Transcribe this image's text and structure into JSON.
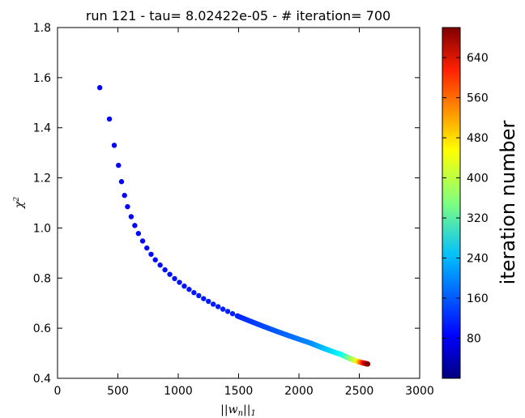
{
  "chart_data": {
    "type": "scatter",
    "title": "run 121 - tau= 8.02422e-05 - # iteration= 700",
    "xlabel": "||w_n||_1",
    "ylabel": "χ²",
    "xlim": [
      0,
      3000
    ],
    "ylim": [
      0.4,
      1.8
    ],
    "x_ticks": [
      "0",
      "500",
      "1000",
      "1500",
      "2000",
      "2500",
      "3000"
    ],
    "y_ticks": [
      "0.4",
      "0.6",
      "0.8",
      "1.0",
      "1.2",
      "1.4",
      "1.6",
      "1.8"
    ],
    "grid": false,
    "colorbar": {
      "label": "iteration number",
      "range": [
        0,
        700
      ],
      "ticks": [
        "80",
        "160",
        "240",
        "320",
        "400",
        "480",
        "560",
        "640"
      ],
      "colormap": "jet"
    },
    "points": [
      {
        "x": 350,
        "y": 1.56,
        "iter": 0
      },
      {
        "x": 430,
        "y": 1.435,
        "iter": 1
      },
      {
        "x": 470,
        "y": 1.33,
        "iter": 2
      },
      {
        "x": 505,
        "y": 1.25,
        "iter": 3
      },
      {
        "x": 530,
        "y": 1.185,
        "iter": 4
      },
      {
        "x": 555,
        "y": 1.13,
        "iter": 5
      },
      {
        "x": 580,
        "y": 1.085,
        "iter": 6
      },
      {
        "x": 610,
        "y": 1.045,
        "iter": 7
      },
      {
        "x": 640,
        "y": 1.01,
        "iter": 8
      },
      {
        "x": 670,
        "y": 0.978,
        "iter": 9
      },
      {
        "x": 705,
        "y": 0.948,
        "iter": 10
      },
      {
        "x": 740,
        "y": 0.92,
        "iter": 11
      },
      {
        "x": 775,
        "y": 0.895,
        "iter": 12
      },
      {
        "x": 810,
        "y": 0.873,
        "iter": 13
      },
      {
        "x": 850,
        "y": 0.852,
        "iter": 14
      },
      {
        "x": 890,
        "y": 0.833,
        "iter": 15
      },
      {
        "x": 930,
        "y": 0.815,
        "iter": 16
      },
      {
        "x": 970,
        "y": 0.798,
        "iter": 17
      },
      {
        "x": 1010,
        "y": 0.783,
        "iter": 18
      },
      {
        "x": 1050,
        "y": 0.768,
        "iter": 19
      },
      {
        "x": 1090,
        "y": 0.755,
        "iter": 20
      },
      {
        "x": 1130,
        "y": 0.742,
        "iter": 21
      },
      {
        "x": 1170,
        "y": 0.73,
        "iter": 22
      },
      {
        "x": 1210,
        "y": 0.718,
        "iter": 23
      },
      {
        "x": 1250,
        "y": 0.707,
        "iter": 24
      },
      {
        "x": 1290,
        "y": 0.696,
        "iter": 25
      },
      {
        "x": 1330,
        "y": 0.686,
        "iter": 26
      },
      {
        "x": 1370,
        "y": 0.676,
        "iter": 27
      },
      {
        "x": 1410,
        "y": 0.667,
        "iter": 28
      },
      {
        "x": 1450,
        "y": 0.658,
        "iter": 29
      },
      {
        "x": 1490,
        "y": 0.649,
        "iter": 30
      }
    ],
    "curve_segments": [
      {
        "x0": 1490,
        "y0": 0.649,
        "x1": 2100,
        "y1": 0.54,
        "i0": 30,
        "i1": 110
      },
      {
        "x0": 2100,
        "y0": 0.54,
        "x1": 2350,
        "y1": 0.495,
        "i0": 110,
        "i1": 200
      },
      {
        "x0": 2350,
        "y0": 0.495,
        "x1": 2480,
        "y1": 0.468,
        "i0": 200,
        "i1": 380
      },
      {
        "x0": 2480,
        "y0": 0.468,
        "x1": 2570,
        "y1": 0.457,
        "i0": 380,
        "i1": 700
      }
    ]
  }
}
